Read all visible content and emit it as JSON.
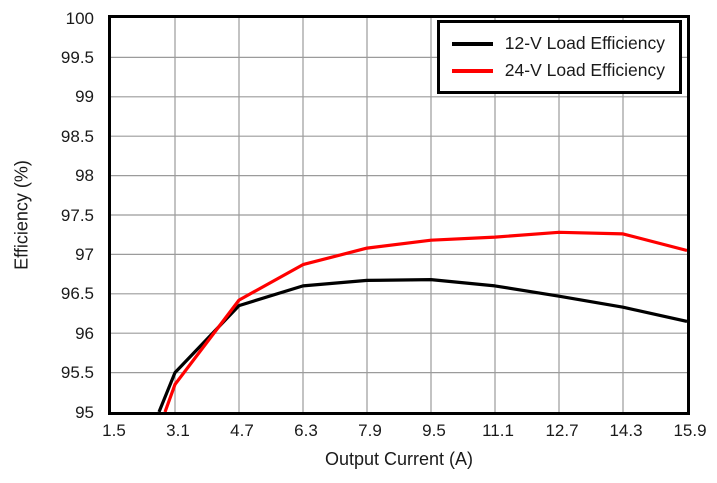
{
  "chart_data": {
    "type": "line",
    "title": "",
    "xlabel": "Output Current (A)",
    "ylabel": "Efficiency (%)",
    "xlim": [
      1.5,
      15.9
    ],
    "ylim": [
      95,
      100
    ],
    "xticks": [
      1.5,
      3.1,
      4.7,
      6.3,
      7.9,
      9.5,
      11.1,
      12.7,
      14.3,
      15.9
    ],
    "xtick_labels": [
      "1.5",
      "3.1",
      "4.7",
      "6.3",
      "7.9",
      "9.5",
      "11.1",
      "12.7",
      "14.3",
      "15.9"
    ],
    "yticks": [
      95,
      95.5,
      96,
      96.5,
      97,
      97.5,
      98,
      98.5,
      99,
      99.5,
      100
    ],
    "ytick_labels": [
      "95",
      "95.5",
      "96",
      "96.5",
      "97",
      "97.5",
      "98",
      "98.5",
      "99",
      "99.5",
      "100"
    ],
    "grid": true,
    "grid_color": "#9b9b9b",
    "axis_color": "#000000",
    "background": "#ffffff",
    "legend_position": "top-right",
    "series": [
      {
        "name": "12-V Load Efficiency",
        "color": "#000000",
        "points": [
          [
            2.7,
            95.0
          ],
          [
            3.1,
            95.5
          ],
          [
            4.7,
            96.35
          ],
          [
            6.3,
            96.6
          ],
          [
            7.9,
            96.67
          ],
          [
            9.5,
            96.68
          ],
          [
            11.1,
            96.6
          ],
          [
            12.7,
            96.47
          ],
          [
            14.3,
            96.33
          ],
          [
            15.9,
            96.15
          ]
        ]
      },
      {
        "name": "24-V Load Efficiency",
        "color": "#ff0000",
        "points": [
          [
            2.85,
            95.0
          ],
          [
            3.1,
            95.35
          ],
          [
            4.7,
            96.42
          ],
          [
            6.3,
            96.87
          ],
          [
            7.9,
            97.08
          ],
          [
            9.5,
            97.18
          ],
          [
            11.1,
            97.22
          ],
          [
            12.7,
            97.28
          ],
          [
            14.3,
            97.26
          ],
          [
            15.9,
            97.05
          ]
        ]
      }
    ]
  }
}
